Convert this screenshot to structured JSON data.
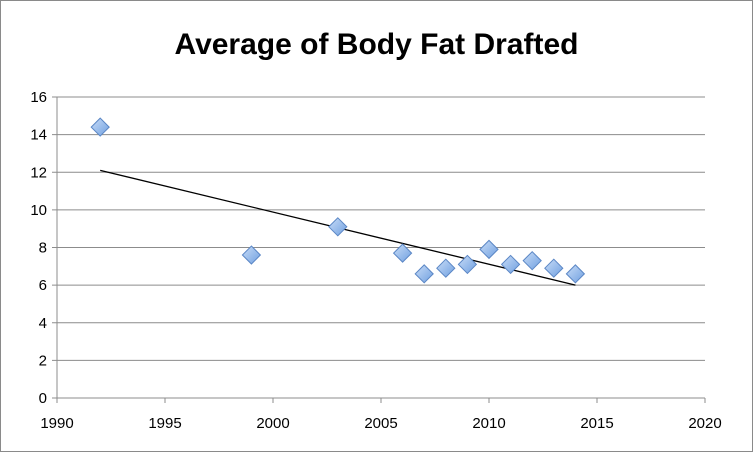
{
  "chart_data": {
    "type": "scatter",
    "title": "Average of Body Fat Drafted",
    "xlabel": "",
    "ylabel": "",
    "xlim": [
      1990,
      2020
    ],
    "ylim": [
      0,
      16
    ],
    "x_ticks": [
      1990,
      1995,
      2000,
      2005,
      2010,
      2015,
      2020
    ],
    "y_ticks": [
      0,
      2,
      4,
      6,
      8,
      10,
      12,
      14,
      16
    ],
    "grid": "horizontal",
    "legend": "none",
    "marker": "diamond",
    "marker_color": "#6f9fe0",
    "series": [
      {
        "points": [
          {
            "x": 1992,
            "y": 14.4
          },
          {
            "x": 1999,
            "y": 7.6
          },
          {
            "x": 2003,
            "y": 9.1
          },
          {
            "x": 2006,
            "y": 7.7
          },
          {
            "x": 2007,
            "y": 6.6
          },
          {
            "x": 2008,
            "y": 6.9
          },
          {
            "x": 2009,
            "y": 7.1
          },
          {
            "x": 2010,
            "y": 7.9
          },
          {
            "x": 2011,
            "y": 7.1
          },
          {
            "x": 2012,
            "y": 7.3
          },
          {
            "x": 2013,
            "y": 6.9
          },
          {
            "x": 2014,
            "y": 6.6
          }
        ]
      }
    ],
    "trendline": {
      "type": "linear",
      "x_start": 1992,
      "y_start": 12.1,
      "x_end": 2014,
      "y_end": 6.0,
      "color": "#000000"
    }
  }
}
